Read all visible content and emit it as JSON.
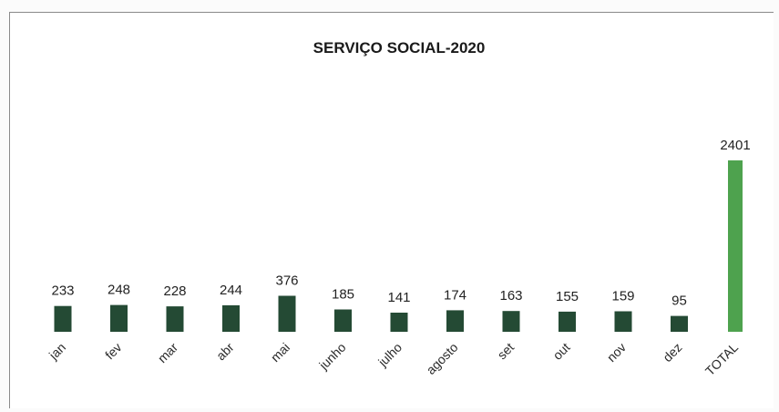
{
  "chart_data": {
    "type": "bar",
    "title": "SERVIÇO SOCIAL-2020",
    "xlabel": "",
    "ylabel": "",
    "categories": [
      "jan",
      "fev",
      "mar",
      "abr",
      "mai",
      "junho",
      "julho",
      "agosto",
      "set",
      "out",
      "nov",
      "dez",
      "TOTAL"
    ],
    "values": [
      233,
      248,
      228,
      244,
      376,
      185,
      141,
      174,
      163,
      155,
      159,
      95,
      2401
    ],
    "ylim": [
      0,
      3000
    ],
    "grid": false,
    "legend": "none",
    "colors": {
      "month_bar": "#244a34",
      "total_bar": "#4ea24e"
    }
  }
}
